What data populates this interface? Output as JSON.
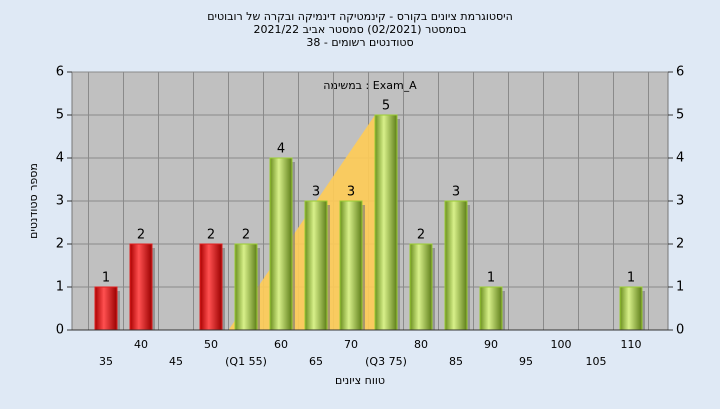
{
  "chart_data": {
    "type": "bar",
    "title": "היסטוגרמת ציונים בקורס - קינמטיקה דינמיקה ובקרה של רובוטים",
    "subtitle": "בסמסטר  (02/2021)  סמסטר אביב 2021/22",
    "subtitle2": "סטודנטים רשומים - 38",
    "annotation": "במשימה : Exam_A",
    "x_label": "טווח ציונים",
    "y_label": "מספר סטודנטים",
    "categories": [
      "35",
      "40",
      "45",
      "50",
      "(Q1 55)",
      "60",
      "65",
      "70",
      "(Q3 75)",
      "80",
      "85",
      "90",
      "95",
      "100",
      "105",
      "110"
    ],
    "values": [
      1,
      2,
      null,
      2,
      2,
      4,
      3,
      3,
      5,
      2,
      3,
      1,
      null,
      null,
      null,
      1
    ],
    "colors": [
      "#e02020",
      "#e02020",
      null,
      "#e02020",
      "#9acd32",
      "#9acd32",
      "#9acd32",
      "#9acd32",
      "#9acd32",
      "#9acd32",
      "#9acd32",
      "#9acd32",
      null,
      null,
      null,
      "#9acd32"
    ],
    "ylim": [
      0,
      6
    ],
    "yticks": [
      0,
      1,
      2,
      3,
      4,
      5,
      6
    ],
    "y2lim": [
      0,
      6
    ],
    "y2ticks": [
      0,
      1,
      2,
      3,
      4,
      5,
      6
    ],
    "grid": true
  }
}
